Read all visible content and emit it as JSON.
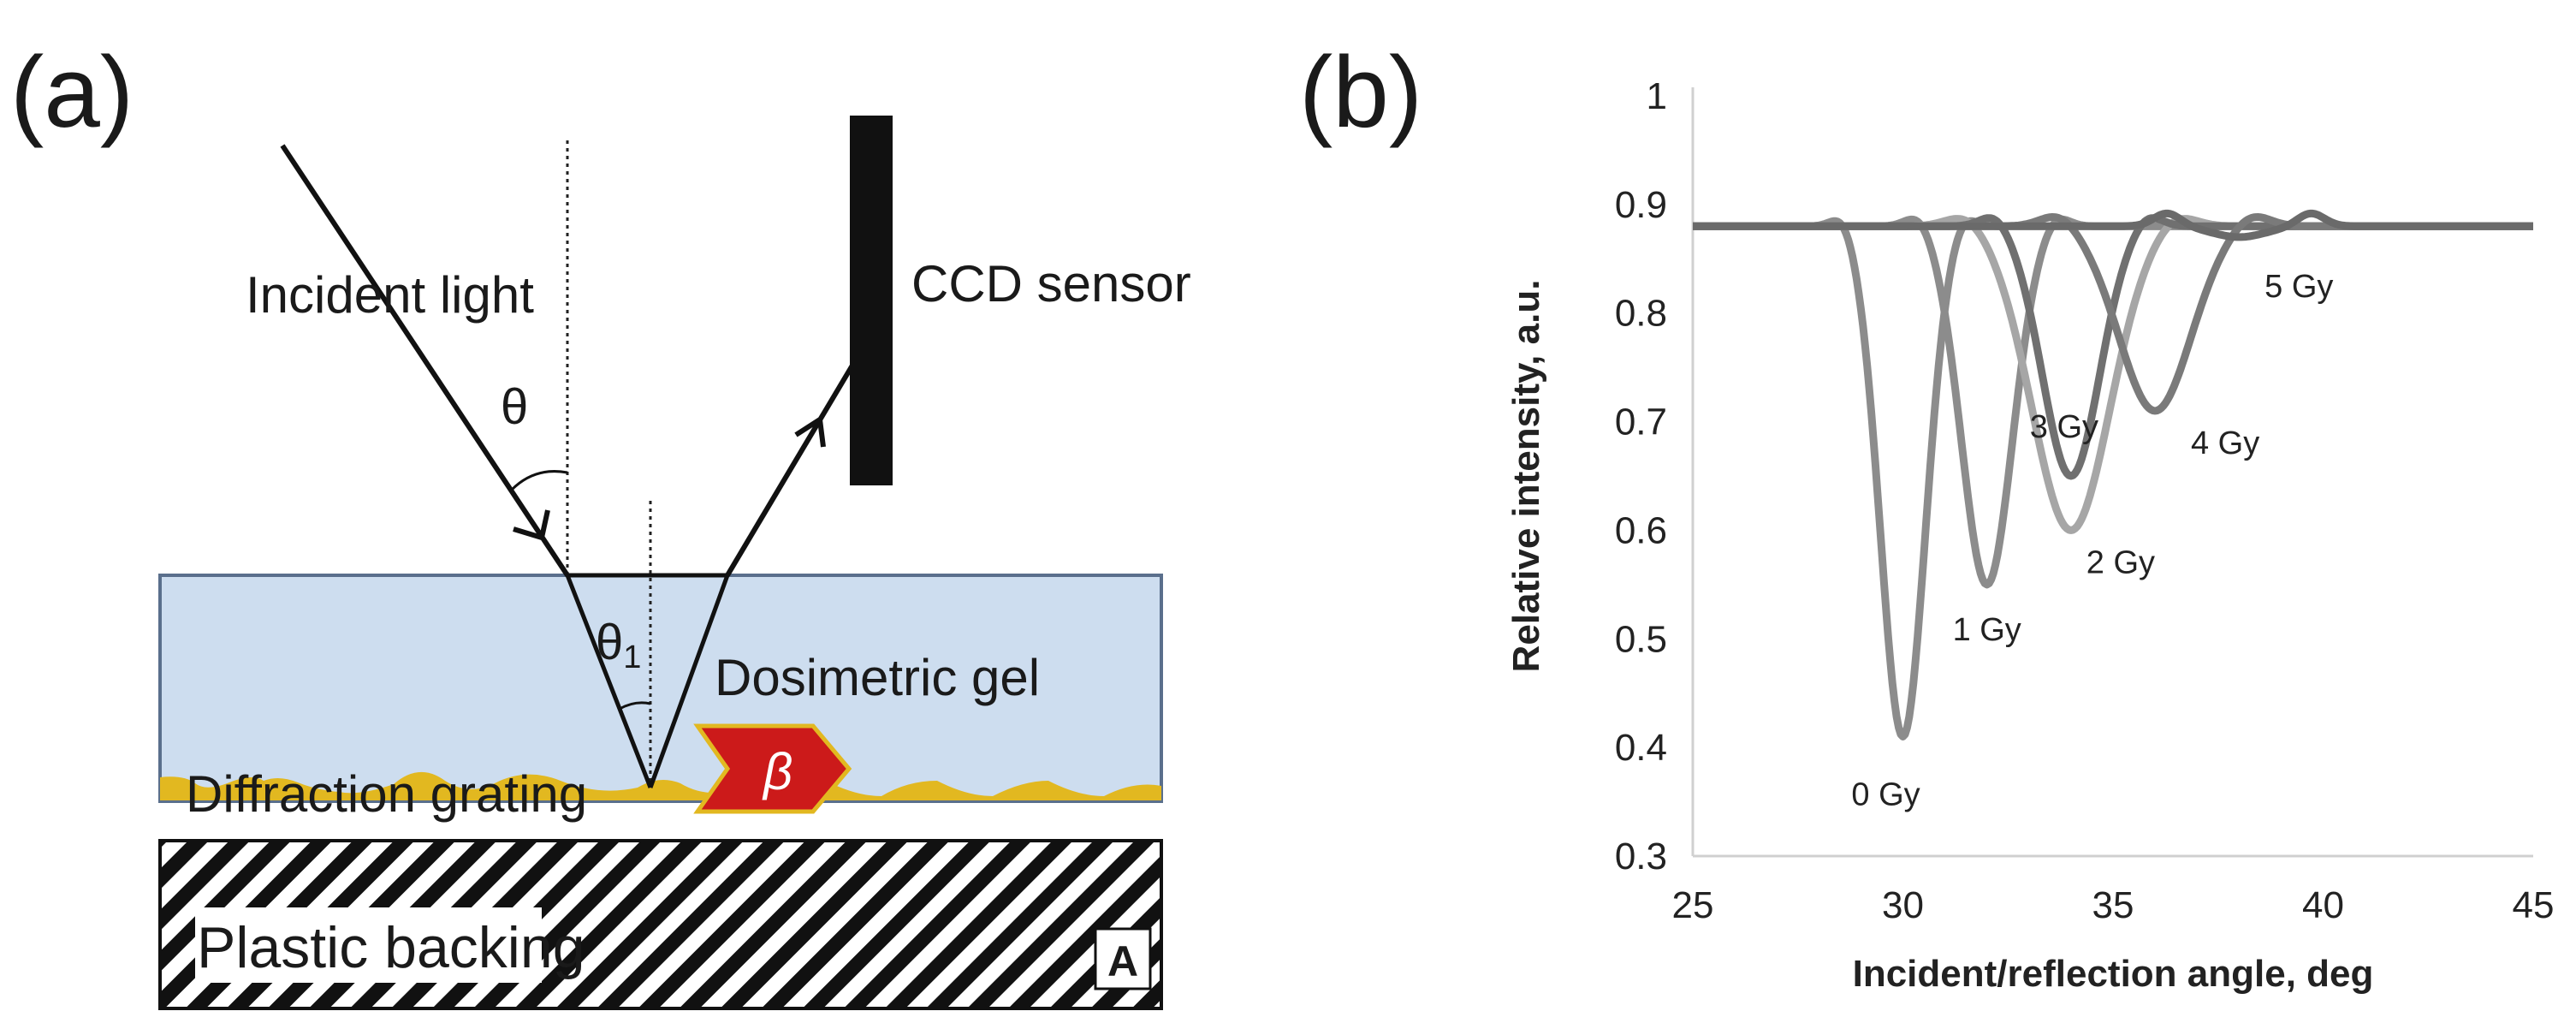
{
  "panel_a": {
    "label": "(a)",
    "incident_light": "Incident light",
    "ccd_sensor": "CCD sensor",
    "theta": "θ",
    "theta1_main": "θ",
    "theta1_sub": "1",
    "dosimetric_gel": "Dosimetric gel",
    "diffraction_grating": "Diffraction grating",
    "beta": "β",
    "plastic_backing": "Plastic backing",
    "corner_mark": "A",
    "colors": {
      "gel": "#cdddef",
      "grating": "#e2b820",
      "beta_arrow": "#cc1a1a",
      "sensor": "#111111"
    }
  },
  "panel_b": {
    "label": "(b)"
  },
  "chart_data": {
    "type": "line",
    "xlabel": "Incident/reflection angle, deg",
    "ylabel": "Relative intensity, a.u.",
    "xlim": [
      25,
      45
    ],
    "ylim": [
      0.3,
      1.0
    ],
    "x_ticks": [
      25,
      30,
      35,
      40,
      45
    ],
    "y_ticks": [
      0.3,
      0.4,
      0.5,
      0.6,
      0.7,
      0.8,
      0.9,
      1.0
    ],
    "x_tick_labels": [
      "25",
      "30",
      "35",
      "40",
      "45"
    ],
    "y_tick_labels": [
      "0.3",
      "0.4",
      "0.5",
      "0.6",
      "0.7",
      "0.8",
      "0.9",
      "1"
    ],
    "grid": false,
    "legend": "none",
    "baseline": 0.88,
    "series": [
      {
        "annotation": "0 Gy",
        "color": "#8c8c8c",
        "dip_x": 30.0,
        "dip_y": 0.41,
        "width": 0.75
      },
      {
        "annotation": "1 Gy",
        "color": "#8c8c8c",
        "dip_x": 32.0,
        "dip_y": 0.55,
        "width": 0.85
      },
      {
        "annotation": "2 Gy",
        "color": "#a6a6a6",
        "dip_x": 34.0,
        "dip_y": 0.6,
        "width": 1.3
      },
      {
        "annotation": "3 Gy",
        "color": "#707070",
        "dip_x": 34.0,
        "dip_y": 0.65,
        "width": 0.95
      },
      {
        "annotation": "4 Gy",
        "color": "#7a7a7a",
        "dip_x": 36.0,
        "dip_y": 0.71,
        "width": 1.2
      },
      {
        "annotation": "5 Gy",
        "color": "#6a6a6a",
        "dip_x": 38.0,
        "dip_y": 0.87,
        "width": 0.9
      }
    ]
  }
}
